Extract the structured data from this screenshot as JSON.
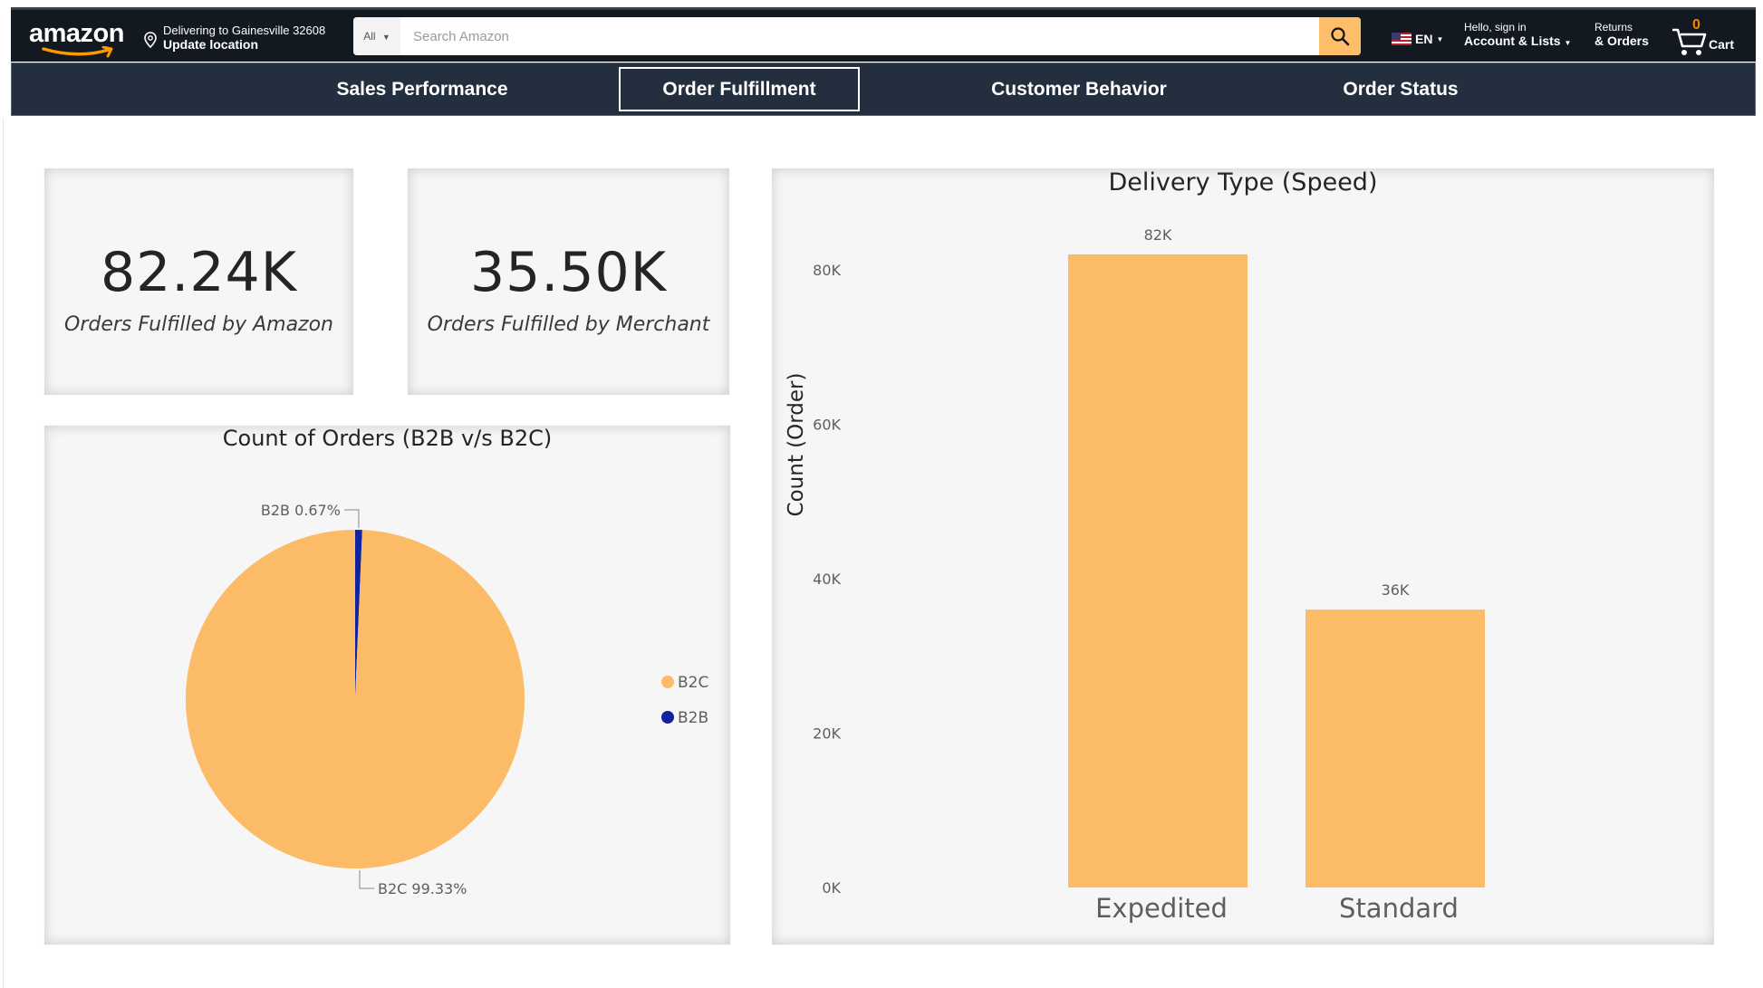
{
  "header": {
    "logo_text": "amazon",
    "location_line1": "Delivering to Gainesville 32608",
    "location_line2": "Update location",
    "search_category": "All",
    "search_placeholder": "Search Amazon",
    "language": "EN",
    "account_line1": "Hello, sign in",
    "account_line2": "Account & Lists",
    "returns_line1": "Returns",
    "returns_line2": "& Orders",
    "cart_count": "0",
    "cart_label": "Cart",
    "colors": {
      "bg": "#131921",
      "search_button": "#febd69",
      "cart_count": "#f08804"
    }
  },
  "tabs": [
    {
      "label": "Sales Performance",
      "active": false
    },
    {
      "label": "Order Fulfillment",
      "active": true
    },
    {
      "label": "Customer Behavior",
      "active": false
    },
    {
      "label": "Order Status",
      "active": false
    }
  ],
  "kpis": [
    {
      "value": "82.24K",
      "label": "Orders Fulfilled by Amazon"
    },
    {
      "value": "35.50K",
      "label": "Orders Fulfilled by Merchant"
    }
  ],
  "chart_data": [
    {
      "type": "pie",
      "title": "Count of Orders (B2B v/s B2C)",
      "slices": [
        {
          "name": "B2C",
          "percent": 99.33,
          "label": "B2C 99.33%",
          "color": "#fcbb66"
        },
        {
          "name": "B2B",
          "percent": 0.67,
          "label": "B2B 0.67%",
          "color": "#12239e"
        }
      ],
      "legend": [
        "B2C",
        "B2B"
      ],
      "legend_position": "right"
    },
    {
      "type": "bar",
      "title": "Delivery Type (Speed)",
      "categories": [
        "Expedited",
        "Standard"
      ],
      "values": [
        82000,
        36000
      ],
      "data_labels": [
        "82K",
        "36K"
      ],
      "xlabel": "",
      "ylabel": "Count (Order)",
      "ylim": [
        0,
        80000
      ],
      "yticks": [
        "0K",
        "20K",
        "40K",
        "60K",
        "80K"
      ],
      "bar_color": "#fcbb66",
      "grid": false
    }
  ]
}
